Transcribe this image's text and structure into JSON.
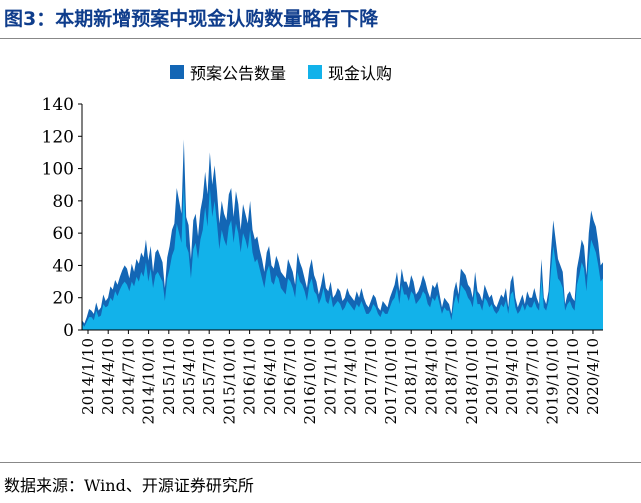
{
  "header": {
    "title": "图3：本期新增预案中现金认购数量略有下降"
  },
  "footer": {
    "source": "数据来源：Wind、开源证券研究所"
  },
  "colors": {
    "dark_series": "#1366b5",
    "light_series": "#12b2ea",
    "title": "#0f3d8c"
  },
  "chart_data": {
    "type": "area",
    "title": "",
    "xlabel": "",
    "ylabel": "",
    "ylim": [
      0,
      140
    ],
    "yticks": [
      0,
      20,
      40,
      60,
      80,
      100,
      120,
      140
    ],
    "grid": false,
    "legend_position": "top",
    "x_ticks": [
      "2014/1/10",
      "2014/4/10",
      "2014/7/10",
      "2014/10/10",
      "2015/1/10",
      "2015/4/10",
      "2015/7/10",
      "2015/10/10",
      "2016/1/10",
      "2016/4/10",
      "2016/7/10",
      "2016/10/10",
      "2017/1/10",
      "2017/4/10",
      "2017/7/10",
      "2017/10/10",
      "2018/1/10",
      "2018/4/10",
      "2018/7/10",
      "2018/10/10",
      "2019/1/10",
      "2019/4/10",
      "2019/7/10",
      "2019/10/10",
      "2020/1/10",
      "2020/4/10"
    ],
    "series": [
      {
        "name": "预案公告数量",
        "values": [
          6,
          4,
          8,
          13,
          12,
          10,
          17,
          12,
          14,
          22,
          18,
          20,
          27,
          25,
          31,
          28,
          33,
          37,
          40,
          38,
          32,
          41,
          36,
          44,
          41,
          48,
          45,
          56,
          43,
          52,
          36,
          48,
          50,
          46,
          42,
          26,
          45,
          52,
          62,
          66,
          88,
          80,
          72,
          118,
          70,
          65,
          44,
          68,
          72,
          58,
          74,
          82,
          98,
          84,
          110,
          90,
          102,
          86,
          66,
          80,
          72,
          68,
          84,
          88,
          70,
          86,
          78,
          62,
          78,
          72,
          66,
          80,
          62,
          56,
          58,
          50,
          44,
          36,
          48,
          52,
          40,
          38,
          46,
          42,
          36,
          34,
          32,
          44,
          40,
          36,
          28,
          48,
          42,
          38,
          32,
          26,
          38,
          44,
          34,
          30,
          22,
          28,
          36,
          26,
          24,
          30,
          20,
          22,
          26,
          24,
          18,
          20,
          26,
          22,
          20,
          18,
          24,
          20,
          26,
          20,
          16,
          14,
          18,
          22,
          20,
          14,
          12,
          18,
          16,
          14,
          20,
          24,
          28,
          36,
          24,
          38,
          30,
          30,
          26,
          34,
          30,
          22,
          24,
          28,
          34,
          30,
          24,
          20,
          28,
          26,
          30,
          22,
          14,
          20,
          18,
          16,
          10,
          24,
          30,
          22,
          38,
          36,
          34,
          28,
          26,
          20,
          36,
          24,
          22,
          18,
          28,
          24,
          20,
          22,
          16,
          14,
          18,
          22,
          20,
          26,
          14,
          30,
          34,
          20,
          14,
          18,
          22,
          16,
          24,
          20,
          20,
          26,
          20,
          16,
          44,
          20,
          16,
          24,
          48,
          68,
          56,
          44,
          40,
          36,
          16,
          22,
          24,
          20,
          18,
          38,
          46,
          56,
          52,
          34,
          60,
          74,
          68,
          64,
          54,
          40,
          42
        ],
        "color": "#1366b5"
      },
      {
        "name": "现金认购",
        "values": [
          4,
          2,
          5,
          8,
          8,
          6,
          12,
          8,
          9,
          16,
          14,
          15,
          20,
          18,
          24,
          21,
          25,
          28,
          30,
          28,
          24,
          30,
          27,
          33,
          30,
          36,
          33,
          42,
          30,
          38,
          26,
          34,
          36,
          33,
          30,
          18,
          32,
          38,
          46,
          50,
          66,
          60,
          54,
          90,
          52,
          48,
          32,
          50,
          54,
          44,
          56,
          62,
          76,
          64,
          88,
          70,
          80,
          66,
          50,
          62,
          56,
          52,
          64,
          68,
          54,
          66,
          60,
          48,
          60,
          56,
          50,
          62,
          48,
          42,
          44,
          38,
          32,
          26,
          36,
          40,
          30,
          28,
          34,
          32,
          26,
          24,
          22,
          32,
          30,
          26,
          20,
          36,
          30,
          28,
          24,
          18,
          28,
          32,
          24,
          22,
          16,
          20,
          26,
          18,
          16,
          22,
          14,
          16,
          18,
          16,
          12,
          14,
          18,
          16,
          14,
          12,
          16,
          14,
          18,
          14,
          10,
          10,
          12,
          16,
          14,
          10,
          8,
          12,
          10,
          10,
          14,
          18,
          20,
          26,
          16,
          28,
          22,
          22,
          18,
          24,
          22,
          16,
          18,
          20,
          24,
          22,
          16,
          14,
          20,
          18,
          22,
          16,
          10,
          14,
          12,
          12,
          6,
          16,
          22,
          16,
          28,
          26,
          24,
          20,
          18,
          14,
          26,
          16,
          16,
          12,
          20,
          18,
          14,
          16,
          12,
          10,
          12,
          16,
          14,
          18,
          10,
          22,
          24,
          14,
          10,
          12,
          16,
          12,
          16,
          14,
          14,
          18,
          14,
          12,
          32,
          14,
          12,
          18,
          36,
          52,
          42,
          32,
          30,
          26,
          12,
          16,
          18,
          14,
          12,
          28,
          34,
          42,
          38,
          24,
          44,
          56,
          52,
          48,
          40,
          30,
          32
        ],
        "color": "#12b2ea"
      }
    ]
  }
}
